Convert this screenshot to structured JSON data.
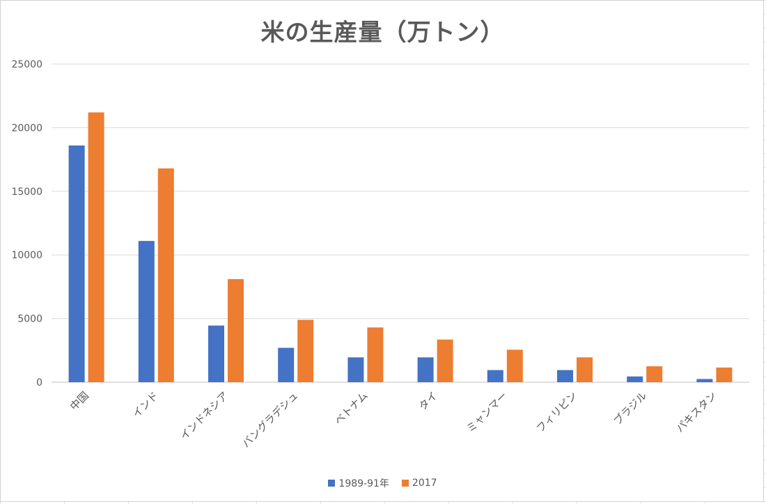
{
  "chart_data": {
    "type": "bar",
    "title": "米の生産量（万トン）",
    "categories": [
      "中国",
      "インド",
      "インドネシア",
      "バングラデシュ",
      "ベトナム",
      "タイ",
      "ミャンマー",
      "フィリピン",
      "ブラジル",
      "パキスタン"
    ],
    "series": [
      {
        "name": "1989-91年",
        "color": "#4472C4",
        "values": [
          18600,
          11100,
          4450,
          2700,
          1950,
          1950,
          950,
          950,
          450,
          250
        ]
      },
      {
        "name": "2017",
        "color": "#ED7D31",
        "values": [
          21200,
          16800,
          8100,
          4900,
          4300,
          3350,
          2550,
          1950,
          1250,
          1150
        ]
      }
    ],
    "y_ticks": [
      "0",
      "5000",
      "10000",
      "15000",
      "20000",
      "25000"
    ],
    "ylim": [
      0,
      25000
    ],
    "grid": true,
    "legend_position": "bottom"
  }
}
